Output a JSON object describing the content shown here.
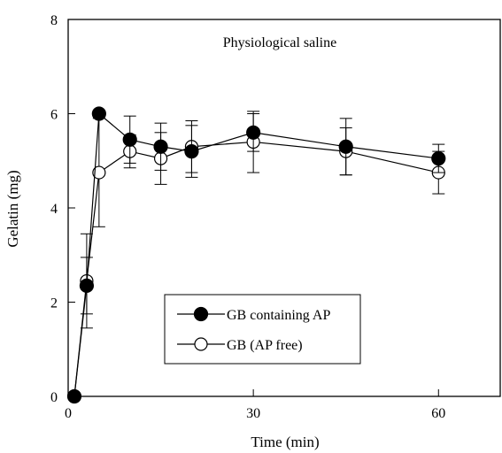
{
  "chart_data": {
    "type": "line",
    "title": "",
    "annotation": "Physiological saline",
    "xlabel": "Time (min)",
    "ylabel": "Gelatin (mg)",
    "xlim": [
      0,
      70
    ],
    "ylim": [
      0,
      8
    ],
    "x_ticks": [
      0,
      30,
      60
    ],
    "y_ticks": [
      0,
      2,
      4,
      6,
      8
    ],
    "grid": false,
    "legend_position": "lower-center",
    "series": [
      {
        "name": "GB containing AP",
        "marker": "filled-circle",
        "color": "#000000",
        "x": [
          1,
          3,
          5,
          10,
          15,
          20,
          30,
          45,
          60
        ],
        "y": [
          0.0,
          2.35,
          6.0,
          5.45,
          5.3,
          5.2,
          5.6,
          5.3,
          5.05
        ],
        "err": [
          0.0,
          0.6,
          0.0,
          0.5,
          0.5,
          0.55,
          0.4,
          0.6,
          0.3
        ]
      },
      {
        "name": "GB (AP free)",
        "marker": "open-circle",
        "color": "#000000",
        "x": [
          1,
          3,
          5,
          10,
          15,
          20,
          30,
          45,
          60
        ],
        "y": [
          0.0,
          2.45,
          4.75,
          5.2,
          5.05,
          5.3,
          5.4,
          5.2,
          4.75
        ],
        "err": [
          0.0,
          1.0,
          1.15,
          0.35,
          0.55,
          0.55,
          0.65,
          0.5,
          0.45
        ]
      }
    ]
  }
}
